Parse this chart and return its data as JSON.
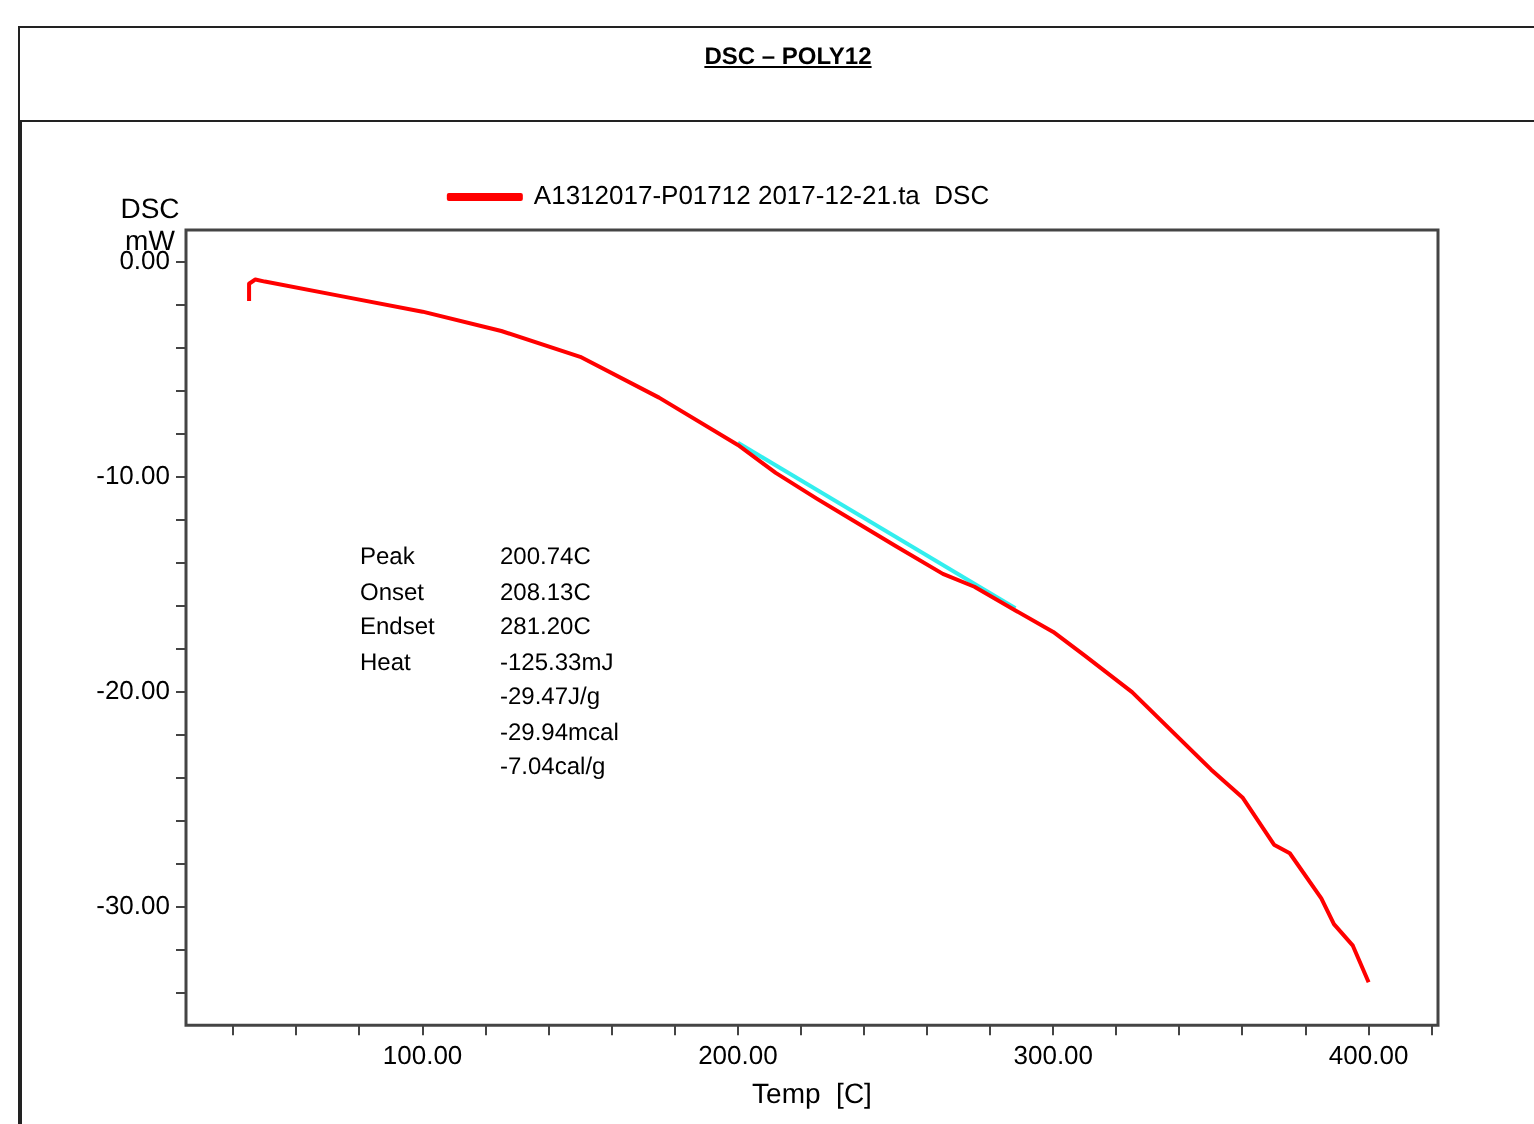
{
  "chart_data": {
    "type": "line",
    "title": "DSC – POLY12",
    "xlabel": "Temp  [C]",
    "ylabel": "DSC mW",
    "xlim": [
      25,
      422
    ],
    "ylim": [
      -35.5,
      1.5
    ],
    "xticks": [
      {
        "value": 40,
        "label": null
      },
      {
        "value": 60,
        "label": null
      },
      {
        "value": 80,
        "label": null
      },
      {
        "value": 100,
        "label": "100.00"
      },
      {
        "value": 120,
        "label": null
      },
      {
        "value": 140,
        "label": null
      },
      {
        "value": 160,
        "label": null
      },
      {
        "value": 180,
        "label": null
      },
      {
        "value": 200,
        "label": "200.00"
      },
      {
        "value": 220,
        "label": null
      },
      {
        "value": 240,
        "label": null
      },
      {
        "value": 260,
        "label": null
      },
      {
        "value": 280,
        "label": null
      },
      {
        "value": 300,
        "label": "300.00"
      },
      {
        "value": 320,
        "label": null
      },
      {
        "value": 340,
        "label": null
      },
      {
        "value": 360,
        "label": null
      },
      {
        "value": 380,
        "label": null
      },
      {
        "value": 400,
        "label": "400.00"
      },
      {
        "value": 420,
        "label": null
      }
    ],
    "yticks": [
      {
        "value": 0,
        "label": "0.00"
      },
      {
        "value": -2,
        "label": null
      },
      {
        "value": -4,
        "label": null
      },
      {
        "value": -6,
        "label": null
      },
      {
        "value": -8,
        "label": null
      },
      {
        "value": -10,
        "label": "-10.00"
      },
      {
        "value": -12,
        "label": null
      },
      {
        "value": -14,
        "label": null
      },
      {
        "value": -16,
        "label": null
      },
      {
        "value": -18,
        "label": null
      },
      {
        "value": -20,
        "label": "-20.00"
      },
      {
        "value": -22,
        "label": null
      },
      {
        "value": -24,
        "label": null
      },
      {
        "value": -26,
        "label": null
      },
      {
        "value": -28,
        "label": null
      },
      {
        "value": -30,
        "label": "-30.00"
      },
      {
        "value": -32,
        "label": null
      },
      {
        "value": -34,
        "label": null
      }
    ],
    "grid": false,
    "legend": "top",
    "marker": "none",
    "line_style": "solid",
    "series": [
      {
        "name": "A1312017-P01712 2017-12-21.ta  DSC",
        "color": "#ff0000",
        "x": [
          45,
          45,
          47,
          50,
          75,
          100,
          125,
          150,
          175,
          200,
          212,
          225,
          250,
          265,
          275,
          288,
          300,
          310,
          325,
          350,
          360,
          370,
          375,
          385,
          389,
          395,
          400
        ],
        "values": [
          -1.8,
          -1.0,
          -0.8,
          -0.9,
          -1.6,
          -2.3,
          -3.2,
          -4.4,
          -6.3,
          -8.5,
          -9.8,
          -11.0,
          -13.2,
          -14.5,
          -15.1,
          -16.2,
          -17.2,
          -18.3,
          -20.0,
          -23.6,
          -24.9,
          -27.1,
          -27.5,
          -29.6,
          -30.8,
          -31.8,
          -33.5
        ]
      },
      {
        "color": "#33eeee",
        "x": [
          200,
          288
        ],
        "values": [
          -8.4,
          -16.1
        ]
      }
    ],
    "annotations": [
      "Peak 200.74C",
      "Onset 208.13C",
      "Endset 281.20C",
      "Heat -125.33mJ",
      "-29.47J/g",
      "-29.94mcal",
      "-7.04cal/g"
    ]
  }
}
